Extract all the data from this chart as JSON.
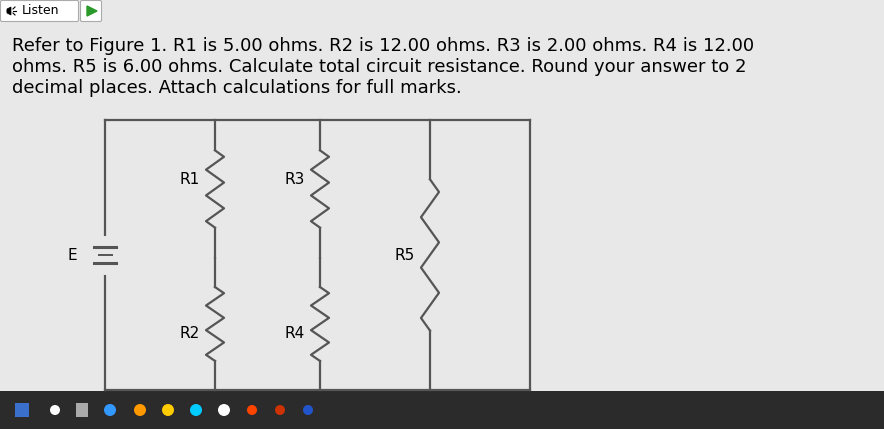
{
  "bg_color": "#e8e8e8",
  "circuit_bg": "#f0f0f0",
  "text_color": "#000000",
  "listen_text": "Listen",
  "main_text_line1": "Refer to Figure 1. R1 is 5.00 ohms. R2 is 12.00 ohms. R3 is 2.00 ohms. R4 is 12.00",
  "main_text_line2": "ohms. R5 is 6.00 ohms. Calculate total circuit resistance. Round your answer to 2",
  "main_text_line3": "decimal places. Attach calculations for full marks.",
  "label_R1": "R1",
  "label_R2": "R2",
  "label_R3": "R3",
  "label_R4": "R4",
  "label_R5": "R5",
  "label_E": "E",
  "font_size_main": 13.0,
  "font_size_label": 11,
  "wire_color": "#555555",
  "taskbar_color": "#2b2b2b",
  "listen_btn_color": "#ffffff",
  "listen_border_color": "#aaaaaa"
}
